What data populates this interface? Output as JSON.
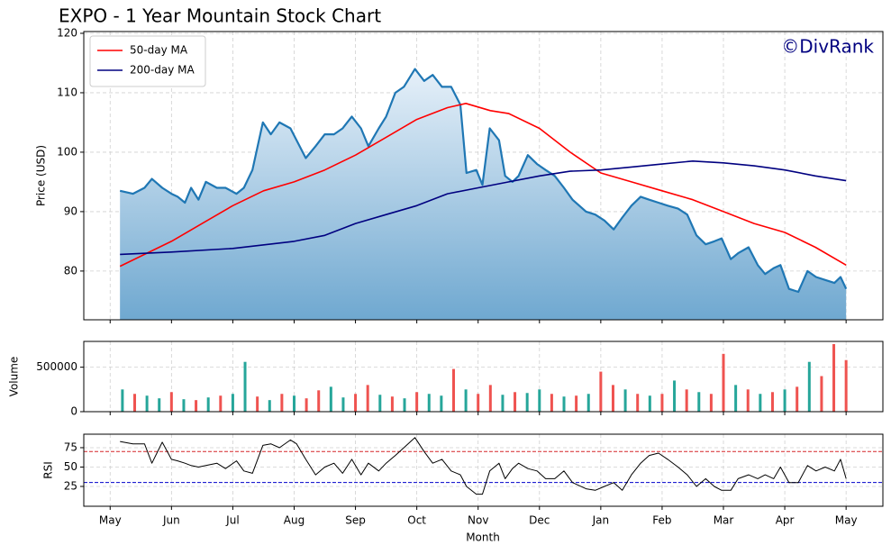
{
  "chart_data": [
    {
      "type": "line",
      "title": "EXPO - 1 Year Mountain Stock Chart",
      "annotation": "©DivRank",
      "ylabel": "Price (USD)",
      "xlim": [
        -0.43,
        12.6
      ],
      "ylim": [
        71.8,
        120.3
      ],
      "yticks": [
        80,
        90,
        100,
        110,
        120
      ],
      "grid": true,
      "legend": "upper left",
      "series": [
        {
          "color": "#1f77b4",
          "fill": true,
          "x": [
            0.16,
            0.37,
            0.56,
            0.68,
            0.85,
            1.0,
            1.1,
            1.22,
            1.32,
            1.44,
            1.56,
            1.74,
            1.88,
            2.06,
            2.18,
            2.32,
            2.49,
            2.62,
            2.76,
            2.94,
            3.04,
            3.19,
            3.35,
            3.5,
            3.65,
            3.79,
            3.94,
            4.09,
            4.21,
            4.38,
            4.5,
            4.65,
            4.79,
            4.97,
            5.12,
            5.26,
            5.41,
            5.56,
            5.71,
            5.81,
            5.97,
            6.07,
            6.19,
            6.34,
            6.44,
            6.56,
            6.66,
            6.81,
            6.96,
            7.1,
            7.25,
            7.4,
            7.54,
            7.76,
            7.91,
            8.06,
            8.21,
            8.35,
            8.5,
            8.65,
            8.79,
            8.94,
            9.09,
            9.26,
            9.41,
            9.56,
            9.71,
            9.85,
            9.97,
            10.12,
            10.24,
            10.41,
            10.56,
            10.68,
            10.82,
            10.93,
            11.07,
            11.22,
            11.37,
            11.51,
            11.66,
            11.81,
            11.91,
            12.0
          ],
          "values": [
            93.5,
            93,
            94,
            95.5,
            94,
            93,
            92.5,
            91.5,
            94,
            92,
            95,
            94,
            94,
            93,
            94,
            97,
            105,
            103,
            105,
            104,
            102,
            99,
            101,
            103,
            103,
            104,
            106,
            104,
            101,
            104,
            106,
            110,
            111,
            114,
            112,
            113,
            111,
            111,
            108,
            96.5,
            97,
            94.5,
            104,
            102,
            96,
            95,
            96,
            99.5,
            98,
            97,
            96,
            94,
            92,
            90,
            89.5,
            88.5,
            87,
            89,
            91,
            92.5,
            92,
            91.5,
            91,
            90.5,
            89.5,
            86,
            84.5,
            85,
            85.5,
            82,
            83,
            84,
            81,
            79.5,
            80.5,
            81,
            77,
            76.5,
            80,
            79,
            78.5,
            78,
            79,
            77
          ]
        },
        {
          "name": "50-day MA",
          "color": "#ff0000",
          "x": [
            0.16,
            0.5,
            1,
            1.5,
            2,
            2.5,
            3,
            3.5,
            4,
            4.5,
            5,
            5.5,
            5.8,
            6.2,
            6.5,
            7,
            7.5,
            8,
            8.5,
            9,
            9.5,
            10,
            10.5,
            11,
            11.5,
            12
          ],
          "values": [
            80.8,
            82.5,
            85,
            88,
            91,
            93.5,
            95,
            97,
            99.5,
            102.5,
            105.5,
            107.5,
            108.2,
            107,
            106.5,
            104,
            100,
            96.5,
            95,
            93.5,
            92,
            90,
            88,
            86.5,
            84,
            81
          ]
        },
        {
          "name": "200-day MA",
          "color": "#000080",
          "x": [
            0.16,
            1,
            2,
            3,
            3.5,
            4,
            4.5,
            5,
            5.5,
            6,
            6.5,
            7,
            7.5,
            8,
            8.5,
            9,
            9.5,
            10,
            10.5,
            11,
            11.5,
            12
          ],
          "values": [
            82.8,
            83.2,
            83.8,
            85,
            86,
            88,
            89.5,
            91,
            93,
            94,
            95,
            96,
            96.8,
            97,
            97.5,
            98,
            98.5,
            98.2,
            97.7,
            97,
            96,
            95.2
          ]
        }
      ]
    },
    {
      "type": "bar",
      "ylabel": "Volume",
      "xlim": [
        -0.43,
        12.6
      ],
      "ylim": [
        0,
        790000
      ],
      "yticks": [
        0,
        500000
      ],
      "grid": true,
      "x": [
        0.2,
        0.4,
        0.6,
        0.8,
        1.0,
        1.2,
        1.4,
        1.6,
        1.8,
        2.0,
        2.2,
        2.4,
        2.6,
        2.8,
        3.0,
        3.2,
        3.4,
        3.6,
        3.8,
        4.0,
        4.2,
        4.4,
        4.6,
        4.8,
        5.0,
        5.2,
        5.4,
        5.6,
        5.8,
        6.0,
        6.2,
        6.4,
        6.6,
        6.8,
        7.0,
        7.2,
        7.4,
        7.6,
        7.8,
        8.0,
        8.2,
        8.4,
        8.6,
        8.8,
        9.0,
        9.2,
        9.4,
        9.6,
        9.8,
        10.0,
        10.2,
        10.4,
        10.6,
        10.8,
        11.0,
        11.2,
        11.4,
        11.6,
        11.8,
        12.0
      ],
      "values": [
        250000,
        200000,
        180000,
        150000,
        220000,
        140000,
        130000,
        160000,
        180000,
        200000,
        560000,
        170000,
        130000,
        200000,
        180000,
        150000,
        240000,
        280000,
        160000,
        200000,
        300000,
        190000,
        170000,
        150000,
        220000,
        200000,
        180000,
        480000,
        250000,
        200000,
        300000,
        190000,
        220000,
        210000,
        250000,
        200000,
        170000,
        180000,
        200000,
        450000,
        300000,
        250000,
        200000,
        180000,
        200000,
        350000,
        250000,
        220000,
        200000,
        650000,
        300000,
        250000,
        200000,
        220000,
        250000,
        280000,
        560000,
        400000,
        760000,
        580000
      ],
      "colors": [
        "#26a69a",
        "#ef5350",
        "#26a69a",
        "#26a69a",
        "#ef5350",
        "#26a69a",
        "#ef5350",
        "#26a69a",
        "#ef5350",
        "#26a69a",
        "#26a69a",
        "#ef5350",
        "#26a69a",
        "#ef5350",
        "#26a69a",
        "#ef5350",
        "#ef5350",
        "#26a69a",
        "#26a69a",
        "#ef5350",
        "#ef5350",
        "#26a69a",
        "#ef5350",
        "#26a69a",
        "#ef5350",
        "#26a69a",
        "#26a69a",
        "#ef5350",
        "#26a69a",
        "#ef5350",
        "#ef5350",
        "#26a69a",
        "#ef5350",
        "#26a69a",
        "#26a69a",
        "#ef5350",
        "#26a69a",
        "#ef5350",
        "#26a69a",
        "#ef5350",
        "#ef5350",
        "#26a69a",
        "#ef5350",
        "#26a69a",
        "#ef5350",
        "#26a69a",
        "#ef5350",
        "#26a69a",
        "#ef5350",
        "#ef5350",
        "#26a69a",
        "#ef5350",
        "#26a69a",
        "#ef5350",
        "#26a69a",
        "#ef5350",
        "#26a69a",
        "#ef5350",
        "#ef5350",
        "#ef5350"
      ]
    },
    {
      "type": "line",
      "ylabel": "RSI",
      "xlabel": "Month",
      "xlim": [
        -0.43,
        12.6
      ],
      "ylim": [
        -0.6,
        92.4
      ],
      "yticks": [
        25,
        50,
        75
      ],
      "grid": true,
      "xticks": [
        {
          "value": 0,
          "label": "May"
        },
        {
          "value": 1,
          "label": "Jun"
        },
        {
          "value": 2,
          "label": "Jul"
        },
        {
          "value": 3,
          "label": "Aug"
        },
        {
          "value": 4,
          "label": "Sep"
        },
        {
          "value": 5,
          "label": "Oct"
        },
        {
          "value": 6,
          "label": "Nov"
        },
        {
          "value": 7,
          "label": "Dec"
        },
        {
          "value": 8,
          "label": "Jan"
        },
        {
          "value": 9,
          "label": "Feb"
        },
        {
          "value": 10,
          "label": "Mar"
        },
        {
          "value": 11,
          "label": "Apr"
        },
        {
          "value": 12,
          "label": "May"
        }
      ],
      "hlines": [
        {
          "value": 70,
          "color": "#d62728"
        },
        {
          "value": 30,
          "color": "#0000cc"
        }
      ],
      "series": [
        {
          "color": "#000000",
          "x": [
            0.16,
            0.37,
            0.56,
            0.68,
            0.85,
            1.0,
            1.1,
            1.22,
            1.32,
            1.44,
            1.56,
            1.74,
            1.88,
            2.06,
            2.18,
            2.32,
            2.49,
            2.62,
            2.76,
            2.94,
            3.04,
            3.19,
            3.35,
            3.5,
            3.65,
            3.79,
            3.94,
            4.09,
            4.21,
            4.38,
            4.5,
            4.65,
            4.79,
            4.97,
            5.12,
            5.26,
            5.41,
            5.56,
            5.71,
            5.81,
            5.97,
            6.07,
            6.19,
            6.34,
            6.44,
            6.56,
            6.66,
            6.81,
            6.96,
            7.1,
            7.25,
            7.4,
            7.54,
            7.76,
            7.91,
            8.06,
            8.21,
            8.35,
            8.5,
            8.65,
            8.79,
            8.94,
            9.09,
            9.26,
            9.41,
            9.56,
            9.71,
            9.85,
            9.97,
            10.12,
            10.24,
            10.41,
            10.56,
            10.68,
            10.82,
            10.93,
            11.07,
            11.22,
            11.37,
            11.51,
            11.66,
            11.81,
            11.91,
            12.0
          ],
          "values": [
            83,
            80,
            80,
            55,
            82,
            60,
            58,
            55,
            52,
            50,
            52,
            55,
            48,
            58,
            45,
            42,
            78,
            80,
            75,
            85,
            80,
            60,
            40,
            50,
            55,
            42,
            60,
            40,
            55,
            45,
            55,
            65,
            75,
            88,
            70,
            55,
            60,
            45,
            40,
            25,
            15,
            15,
            45,
            55,
            35,
            48,
            55,
            48,
            45,
            35,
            35,
            45,
            30,
            22,
            20,
            25,
            30,
            20,
            40,
            55,
            65,
            68,
            60,
            50,
            40,
            25,
            35,
            25,
            20,
            20,
            35,
            40,
            35,
            40,
            35,
            50,
            30,
            30,
            52,
            45,
            50,
            45,
            60,
            35
          ]
        }
      ]
    }
  ]
}
